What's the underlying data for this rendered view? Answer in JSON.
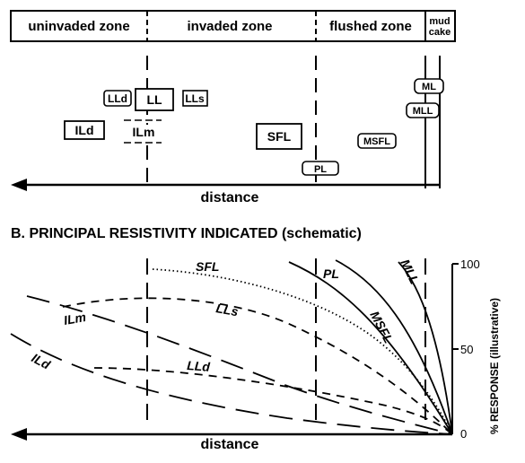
{
  "zones": {
    "uninvaded": "uninvaded zone",
    "invaded": "invaded zone",
    "flushed": "flushed zone",
    "mud_line1": "mud",
    "mud_line2": "cake"
  },
  "top_panel": {
    "tools": {
      "LLd": "LLd",
      "LL": "LL",
      "LLs": "LLs",
      "ILd": "ILd",
      "ILm": "ILm",
      "SFL": "SFL",
      "PL": "PL",
      "MSFL": "MSFL",
      "MLL": "MLL",
      "ML": "ML"
    },
    "axis_label": "distance"
  },
  "bottom_panel": {
    "title": "B. PRINCIPAL RESISTIVITY INDICATED (schematic)",
    "axis_label": "distance",
    "y_title": "% RESPONSE (illustrative)",
    "ticks": [
      "100",
      "50",
      "0"
    ],
    "curve_labels": {
      "SFL": "SFL",
      "PL": "PL",
      "MSFL": "MSFL",
      "MLL": "MLL",
      "LLs": "LLs",
      "ILm": "ILm",
      "LLd": "LLd",
      "ILd": "ILd"
    }
  },
  "colors": {
    "ink": "#000000",
    "paper": "#ffffff"
  }
}
